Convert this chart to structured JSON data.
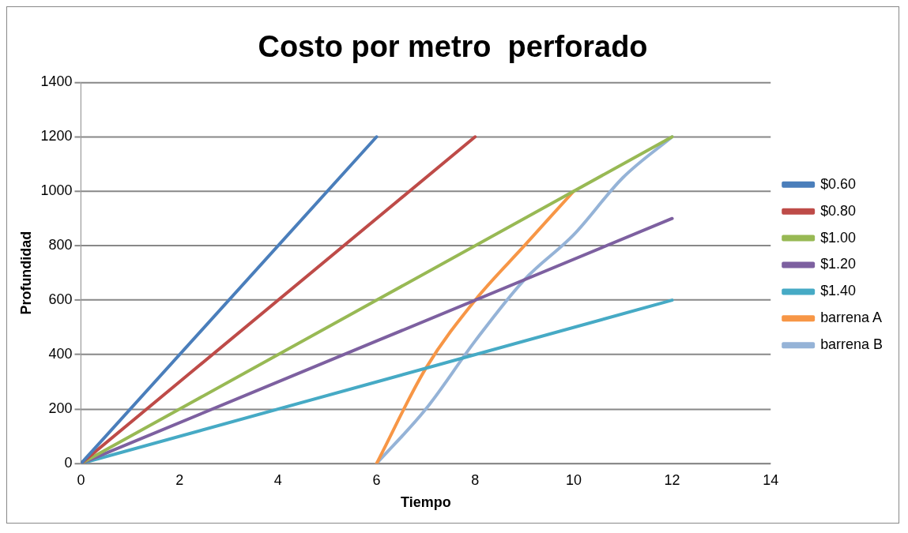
{
  "chart_data": {
    "type": "line",
    "title": "Costo por metro  perforado",
    "xlabel": "Tiempo",
    "ylabel": "Profundidad",
    "xlim": [
      0,
      14
    ],
    "xticks": [
      0,
      2,
      4,
      6,
      8,
      10,
      12,
      14
    ],
    "ylim": [
      0,
      1400
    ],
    "yticks": [
      0,
      200,
      400,
      600,
      800,
      1000,
      1200,
      1400
    ],
    "grid": "y",
    "legend": "right",
    "marker": "none",
    "series": [
      {
        "name": "$0.60",
        "color": "#4a7ebb",
        "x": [
          0,
          6
        ],
        "values": [
          0,
          1200
        ]
      },
      {
        "name": "$0.80",
        "color": "#be4b48",
        "x": [
          0,
          8
        ],
        "values": [
          0,
          1200
        ]
      },
      {
        "name": "$1.00",
        "color": "#98b954",
        "x": [
          0,
          12
        ],
        "values": [
          0,
          1200
        ]
      },
      {
        "name": "$1.20",
        "color": "#7d60a0",
        "x": [
          0,
          12
        ],
        "values": [
          0,
          900
        ]
      },
      {
        "name": "$1.40",
        "color": "#46aac5",
        "x": [
          0,
          12
        ],
        "values": [
          0,
          600
        ]
      },
      {
        "name": "barrena A",
        "color": "#f79646",
        "x": [
          6,
          7,
          8,
          9,
          10
        ],
        "values": [
          0,
          350,
          600,
          800,
          1000
        ]
      },
      {
        "name": "barrena B",
        "color": "#95b3d7",
        "x": [
          6,
          7,
          8,
          9,
          10,
          11,
          12
        ],
        "values": [
          0,
          200,
          450,
          675,
          840,
          1050,
          1200
        ]
      }
    ]
  }
}
